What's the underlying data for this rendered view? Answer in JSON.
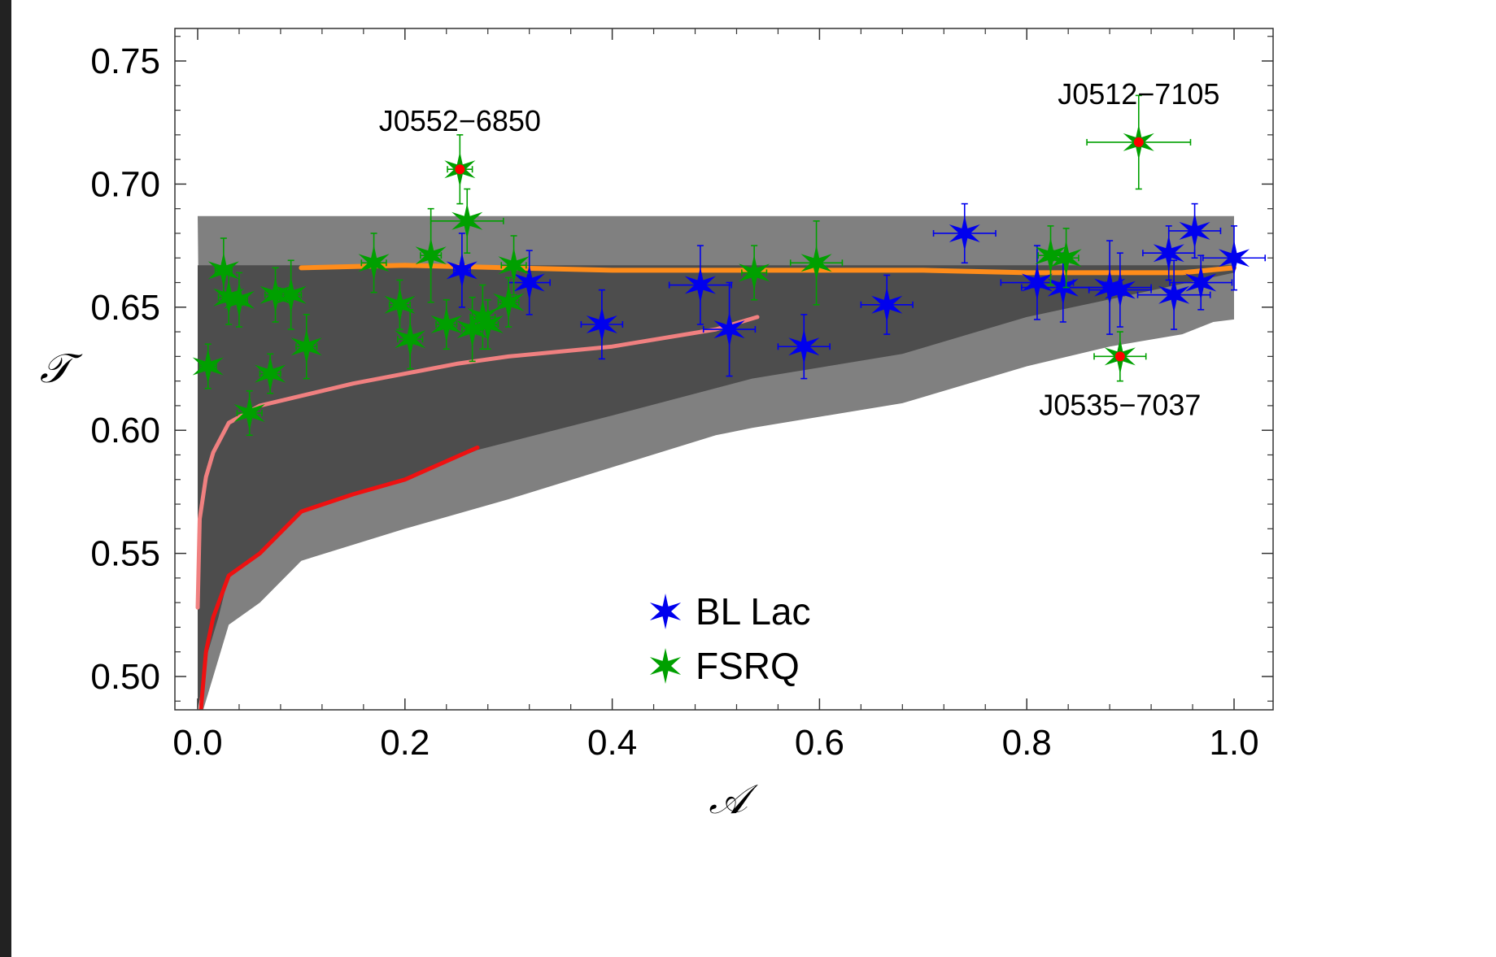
{
  "chart_data": {
    "type": "scatter",
    "title": "",
    "xlabel": "𝒜",
    "ylabel": "𝒯",
    "xlim": [
      -0.02,
      1.04
    ],
    "ylim": [
      0.486,
      0.765
    ],
    "xticks": [
      0.0,
      0.2,
      0.4,
      0.6,
      0.8,
      1.0
    ],
    "xtick_labels": [
      "0.0",
      "0.2",
      "0.4",
      "0.6",
      "0.8",
      "1.0"
    ],
    "yticks": [
      0.5,
      0.55,
      0.6,
      0.65,
      0.7,
      0.75
    ],
    "ytick_labels": [
      "0.50",
      "0.55",
      "0.60",
      "0.65",
      "0.70",
      "0.75"
    ],
    "legend_position": "bottom-center",
    "grid": false,
    "colors": {
      "bl_lac": "#0000ee",
      "fsrq": "#00a000",
      "highlight": "#ff0000",
      "band_light": "#808080",
      "band_dark": "#4d4d4d",
      "curve_orange": "#ff8c1a",
      "curve_pink": "#f08080",
      "curve_red": "#ee1111"
    },
    "bands": [
      {
        "name": "outer band",
        "color": "#808080",
        "upper": [
          [
            0.0,
            0.687
          ],
          [
            1.0,
            0.687
          ]
        ],
        "lower": [
          [
            0.005,
            0.486
          ],
          [
            0.03,
            0.521
          ],
          [
            0.06,
            0.53
          ],
          [
            0.1,
            0.547
          ],
          [
            0.2,
            0.56
          ],
          [
            0.3,
            0.572
          ],
          [
            0.4,
            0.585
          ],
          [
            0.5,
            0.598
          ],
          [
            0.535,
            0.601
          ],
          [
            0.68,
            0.611
          ],
          [
            0.8,
            0.626
          ],
          [
            0.88,
            0.634
          ],
          [
            0.95,
            0.639
          ],
          [
            0.98,
            0.644
          ],
          [
            1.0,
            0.645
          ]
        ]
      },
      {
        "name": "inner band",
        "color": "#4d4d4d",
        "upper": [
          [
            0.0,
            0.667
          ],
          [
            1.0,
            0.667
          ]
        ],
        "lower": [
          [
            0.0,
            0.486
          ],
          [
            0.01,
            0.51
          ],
          [
            0.02,
            0.524
          ],
          [
            0.03,
            0.541
          ],
          [
            0.06,
            0.55
          ],
          [
            0.1,
            0.567
          ],
          [
            0.2,
            0.58
          ],
          [
            0.27,
            0.592
          ],
          [
            0.4,
            0.606
          ],
          [
            0.535,
            0.621
          ],
          [
            0.68,
            0.631
          ],
          [
            0.8,
            0.646
          ],
          [
            0.9,
            0.655
          ],
          [
            1.0,
            0.664
          ]
        ]
      }
    ],
    "curves": [
      {
        "name": "orange curve",
        "color": "#ff8c1a",
        "points": [
          [
            0.1,
            0.666
          ],
          [
            0.2,
            0.667
          ],
          [
            0.3,
            0.666
          ],
          [
            0.4,
            0.665
          ],
          [
            0.5,
            0.665
          ],
          [
            0.6,
            0.665
          ],
          [
            0.7,
            0.665
          ],
          [
            0.8,
            0.664
          ],
          [
            0.9,
            0.664
          ],
          [
            0.95,
            0.664
          ],
          [
            1.0,
            0.666
          ]
        ]
      },
      {
        "name": "pink curve",
        "color": "#f08080",
        "points": [
          [
            0.0,
            0.528
          ],
          [
            0.002,
            0.564
          ],
          [
            0.008,
            0.581
          ],
          [
            0.015,
            0.591
          ],
          [
            0.03,
            0.603
          ],
          [
            0.06,
            0.61
          ],
          [
            0.1,
            0.614
          ],
          [
            0.15,
            0.619
          ],
          [
            0.2,
            0.623
          ],
          [
            0.25,
            0.627
          ],
          [
            0.3,
            0.63
          ],
          [
            0.4,
            0.634
          ],
          [
            0.5,
            0.641
          ],
          [
            0.54,
            0.646
          ]
        ]
      },
      {
        "name": "red curve",
        "color": "#ee1111",
        "points": [
          [
            0.003,
            0.486
          ],
          [
            0.008,
            0.51
          ],
          [
            0.015,
            0.524
          ],
          [
            0.03,
            0.541
          ],
          [
            0.06,
            0.55
          ],
          [
            0.1,
            0.567
          ],
          [
            0.15,
            0.574
          ],
          [
            0.2,
            0.58
          ],
          [
            0.27,
            0.593
          ]
        ]
      }
    ],
    "series": [
      {
        "name": "BL Lac",
        "color": "#0000ee",
        "points": [
          {
            "x": 0.255,
            "y": 0.665,
            "xerr": 0.008,
            "yerr": 0.015
          },
          {
            "x": 0.32,
            "y": 0.66,
            "xerr": 0.02,
            "yerr": 0.013
          },
          {
            "x": 0.39,
            "y": 0.643,
            "xerr": 0.02,
            "yerr": 0.014
          },
          {
            "x": 0.485,
            "y": 0.659,
            "xerr": 0.03,
            "yerr": 0.016
          },
          {
            "x": 0.513,
            "y": 0.641,
            "xerr": 0.025,
            "yerr": 0.019
          },
          {
            "x": 0.585,
            "y": 0.634,
            "xerr": 0.025,
            "yerr": 0.013
          },
          {
            "x": 0.665,
            "y": 0.651,
            "xerr": 0.025,
            "yerr": 0.012
          },
          {
            "x": 0.74,
            "y": 0.68,
            "xerr": 0.03,
            "yerr": 0.012
          },
          {
            "x": 0.81,
            "y": 0.66,
            "xerr": 0.035,
            "yerr": 0.015
          },
          {
            "x": 0.835,
            "y": 0.658,
            "xerr": 0.04,
            "yerr": 0.014
          },
          {
            "x": 0.88,
            "y": 0.658,
            "xerr": 0.04,
            "yerr": 0.019
          },
          {
            "x": 0.89,
            "y": 0.657,
            "xerr": 0.03,
            "yerr": 0.015
          },
          {
            "x": 0.937,
            "y": 0.672,
            "xerr": 0.025,
            "yerr": 0.011
          },
          {
            "x": 0.942,
            "y": 0.655,
            "xerr": 0.035,
            "yerr": 0.014
          },
          {
            "x": 0.962,
            "y": 0.681,
            "xerr": 0.025,
            "yerr": 0.011
          },
          {
            "x": 0.968,
            "y": 0.66,
            "xerr": 0.03,
            "yerr": 0.011
          },
          {
            "x": 1.0,
            "y": 0.67,
            "xerr": 0.03,
            "yerr": 0.013
          }
        ]
      },
      {
        "name": "FSRQ",
        "color": "#00a000",
        "points": [
          {
            "x": 0.01,
            "y": 0.626,
            "xerr": 0.008,
            "yerr": 0.009
          },
          {
            "x": 0.025,
            "y": 0.665,
            "xerr": 0.008,
            "yerr": 0.013
          },
          {
            "x": 0.03,
            "y": 0.654,
            "xerr": 0.01,
            "yerr": 0.011
          },
          {
            "x": 0.04,
            "y": 0.653,
            "xerr": 0.008,
            "yerr": 0.011
          },
          {
            "x": 0.05,
            "y": 0.607,
            "xerr": 0.012,
            "yerr": 0.009
          },
          {
            "x": 0.07,
            "y": 0.623,
            "xerr": 0.01,
            "yerr": 0.008
          },
          {
            "x": 0.075,
            "y": 0.655,
            "xerr": 0.01,
            "yerr": 0.011
          },
          {
            "x": 0.09,
            "y": 0.655,
            "xerr": 0.01,
            "yerr": 0.014
          },
          {
            "x": 0.105,
            "y": 0.634,
            "xerr": 0.01,
            "yerr": 0.013
          },
          {
            "x": 0.17,
            "y": 0.668,
            "xerr": 0.012,
            "yerr": 0.012
          },
          {
            "x": 0.195,
            "y": 0.651,
            "xerr": 0.01,
            "yerr": 0.01
          },
          {
            "x": 0.205,
            "y": 0.637,
            "xerr": 0.012,
            "yerr": 0.012
          },
          {
            "x": 0.225,
            "y": 0.671,
            "xerr": 0.01,
            "yerr": 0.019
          },
          {
            "x": 0.24,
            "y": 0.643,
            "xerr": 0.01,
            "yerr": 0.01
          },
          {
            "x": 0.26,
            "y": 0.685,
            "xerr": 0.035,
            "yerr": 0.013
          },
          {
            "x": 0.265,
            "y": 0.641,
            "xerr": 0.01,
            "yerr": 0.013
          },
          {
            "x": 0.275,
            "y": 0.646,
            "xerr": 0.012,
            "yerr": 0.013
          },
          {
            "x": 0.28,
            "y": 0.643,
            "xerr": 0.01,
            "yerr": 0.01
          },
          {
            "x": 0.3,
            "y": 0.652,
            "xerr": 0.01,
            "yerr": 0.01
          },
          {
            "x": 0.305,
            "y": 0.667,
            "xerr": 0.012,
            "yerr": 0.012
          },
          {
            "x": 0.537,
            "y": 0.664,
            "xerr": 0.012,
            "yerr": 0.011
          },
          {
            "x": 0.597,
            "y": 0.668,
            "xerr": 0.025,
            "yerr": 0.017
          },
          {
            "x": 0.823,
            "y": 0.671,
            "xerr": 0.012,
            "yerr": 0.012
          },
          {
            "x": 0.838,
            "y": 0.67,
            "xerr": 0.012,
            "yerr": 0.012
          }
        ]
      }
    ],
    "highlighted": [
      {
        "label": "J0552−6850",
        "x": 0.253,
        "y": 0.706,
        "xerr": 0.012,
        "yerr": 0.014,
        "label_anchor": "top"
      },
      {
        "label": "J0512−7105",
        "x": 0.908,
        "y": 0.717,
        "xerr": 0.05,
        "yerr": 0.019,
        "label_anchor": "top"
      },
      {
        "label": "J0535−7037",
        "x": 0.89,
        "y": 0.63,
        "xerr": 0.025,
        "yerr": 0.01,
        "label_anchor": "bottom"
      }
    ],
    "legend": [
      {
        "label": "BL Lac",
        "series": 0
      },
      {
        "label": "FSRQ",
        "series": 1
      }
    ]
  }
}
